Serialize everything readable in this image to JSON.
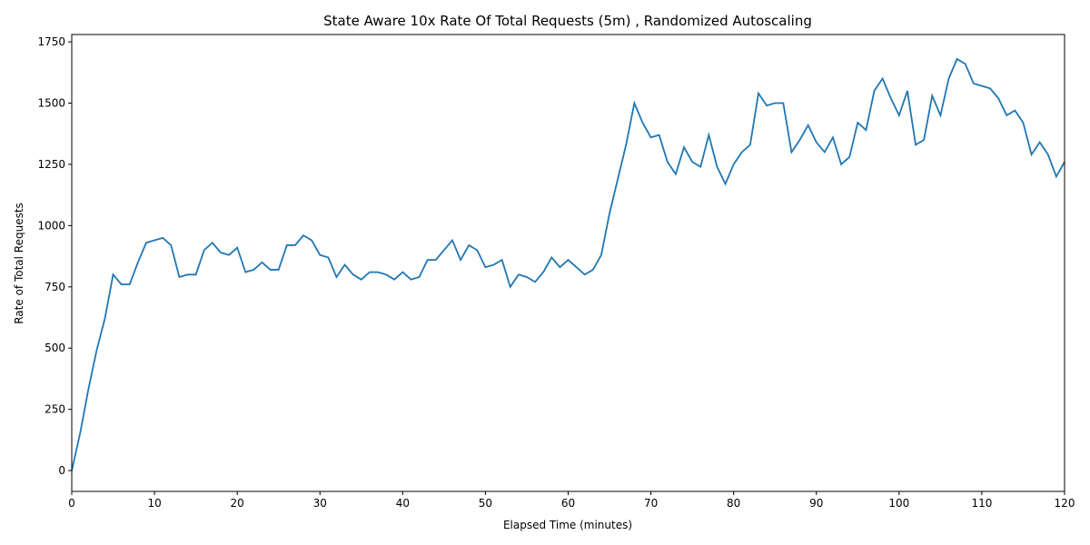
{
  "chart_data": {
    "type": "line",
    "title": "State Aware 10x Rate Of Total Requests (5m) , Randomized Autoscaling",
    "x_label": "Elapsed Time (minutes)",
    "y_label": "Rate of Total Requests",
    "x": [
      0,
      1,
      2,
      3,
      4,
      5,
      6,
      7,
      8,
      9,
      10,
      11,
      12,
      13,
      14,
      15,
      16,
      17,
      18,
      19,
      20,
      21,
      22,
      23,
      24,
      25,
      26,
      27,
      28,
      29,
      30,
      31,
      32,
      33,
      34,
      35,
      36,
      37,
      38,
      39,
      40,
      41,
      42,
      43,
      44,
      45,
      46,
      47,
      48,
      49,
      50,
      51,
      52,
      53,
      54,
      55,
      56,
      57,
      58,
      59,
      60,
      61,
      62,
      63,
      64,
      65,
      66,
      67,
      68,
      69,
      70,
      71,
      72,
      73,
      74,
      75,
      76,
      77,
      78,
      79,
      80,
      81,
      82,
      83,
      84,
      85,
      86,
      87,
      88,
      89,
      90,
      91,
      92,
      93,
      94,
      95,
      96,
      97,
      98,
      99,
      100,
      101,
      102,
      103,
      104,
      105,
      106,
      107,
      108,
      109,
      110,
      111,
      112,
      113,
      114,
      115,
      116,
      117,
      118,
      119,
      120
    ],
    "series": [
      {
        "name": "Rate of Total Requests",
        "color": "#1f77b4",
        "values": [
          0,
          150,
          330,
          490,
          620,
          800,
          760,
          760,
          850,
          930,
          940,
          950,
          920,
          790,
          800,
          800,
          900,
          930,
          890,
          880,
          910,
          810,
          820,
          850,
          820,
          820,
          920,
          920,
          960,
          940,
          880,
          870,
          790,
          840,
          800,
          780,
          810,
          810,
          800,
          780,
          810,
          780,
          790,
          860,
          860,
          900,
          940,
          860,
          920,
          900,
          830,
          840,
          860,
          750,
          800,
          790,
          770,
          810,
          870,
          830,
          860,
          830,
          800,
          820,
          880,
          1050,
          1190,
          1330,
          1500,
          1420,
          1360,
          1370,
          1260,
          1210,
          1320,
          1260,
          1240,
          1370,
          1240,
          1170,
          1250,
          1300,
          1330,
          1540,
          1490,
          1500,
          1500,
          1300,
          1350,
          1410,
          1340,
          1300,
          1360,
          1250,
          1280,
          1420,
          1390,
          1550,
          1600,
          1520,
          1450,
          1550,
          1330,
          1350,
          1530,
          1450,
          1600,
          1680,
          1660,
          1580,
          1570,
          1560,
          1520,
          1450,
          1470,
          1420,
          1290,
          1340,
          1290,
          1200,
          1260
        ]
      }
    ],
    "xlim": [
      0,
      120
    ],
    "ylim": [
      -85,
      1780
    ],
    "xticks": [
      0,
      10,
      20,
      30,
      40,
      50,
      60,
      70,
      80,
      90,
      100,
      110,
      120
    ],
    "yticks": [
      0,
      250,
      500,
      750,
      1000,
      1250,
      1500,
      1750
    ]
  }
}
